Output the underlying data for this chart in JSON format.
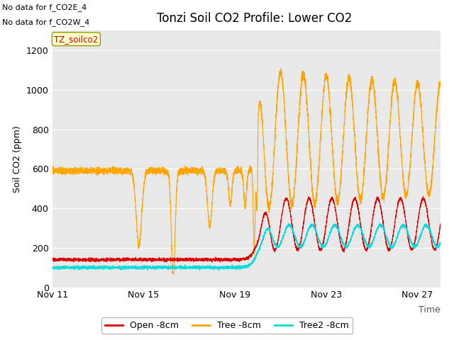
{
  "title": "Tonzi Soil CO2 Profile: Lower CO2",
  "ylabel": "Soil CO2 (ppm)",
  "xlabel": "Time",
  "no_data_text1": "No data for f_CO2E_4",
  "no_data_text2": "No data for f_CO2W_4",
  "watermark_text": "TZ_soilco2",
  "ylim": [
    0,
    1300
  ],
  "fig_bg_color": "#ffffff",
  "plot_bg_color": "#e8e8e8",
  "legend_labels": [
    "Open -8cm",
    "Tree -8cm",
    "Tree2 -8cm"
  ],
  "legend_colors": [
    "#dd0000",
    "#ffa500",
    "#00dddd"
  ],
  "line_colors": {
    "open": "#dd0000",
    "tree": "#ffa500",
    "tree2": "#00dddd"
  },
  "x_tick_labels": [
    "Nov 11",
    "Nov 15",
    "Nov 19",
    "Nov 23",
    "Nov 27"
  ],
  "x_tick_positions": [
    0,
    4,
    8,
    12,
    16
  ],
  "yticks": [
    0,
    200,
    400,
    600,
    800,
    1000,
    1200
  ],
  "title_fontsize": 12,
  "axis_fontsize": 9,
  "tick_fontsize": 9,
  "no_data_fontsize": 8
}
